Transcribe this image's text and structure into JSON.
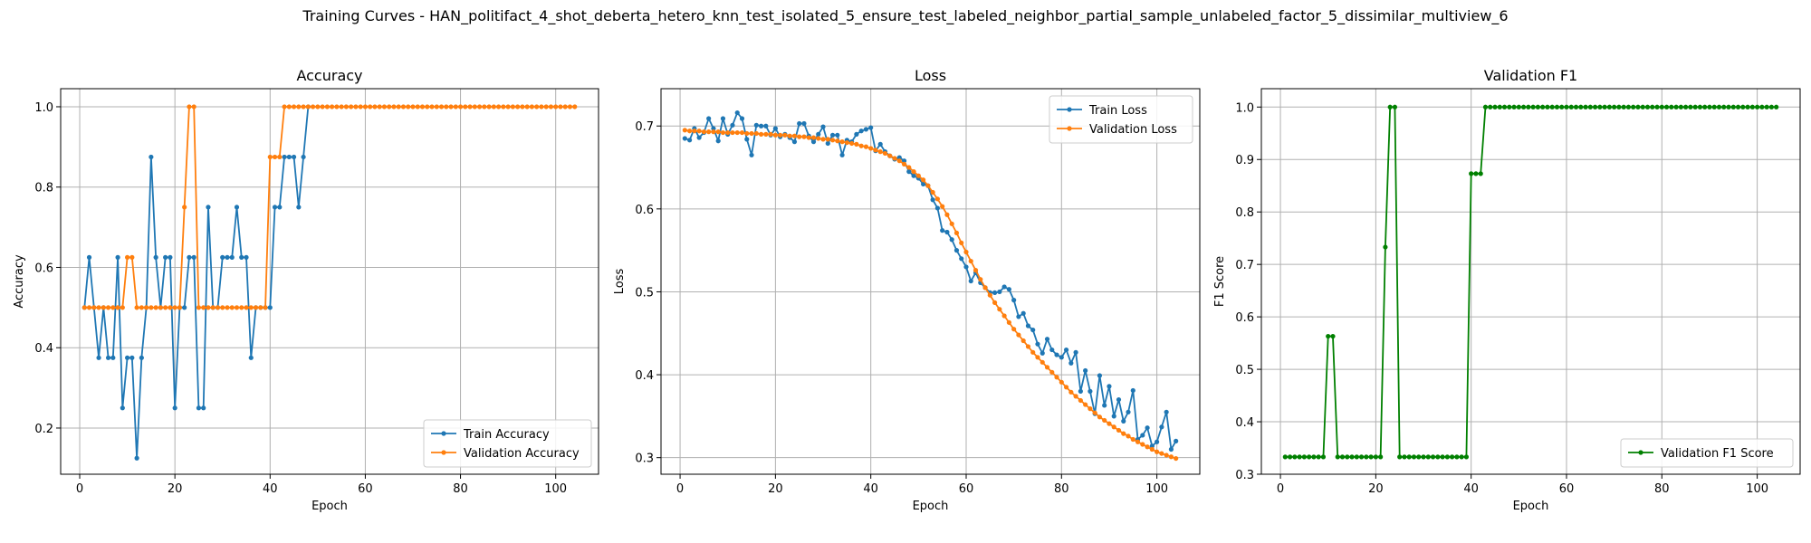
{
  "figure": {
    "suptitle": "Training Curves - HAN_politifact_4_shot_deberta_hetero_knn_test_isolated_5_ensure_test_labeled_neighbor_partial_sample_unlabeled_factor_5_dissimilar_multiview_6"
  },
  "chart_data": [
    {
      "type": "line",
      "title": "Accuracy",
      "xlabel": "Epoch",
      "ylabel": "Accuracy",
      "xlim": [
        -4,
        109
      ],
      "ylim": [
        0.085,
        1.045
      ],
      "xticks": [
        0,
        20,
        40,
        60,
        80,
        100
      ],
      "yticks": [
        0.2,
        0.4,
        0.6,
        0.8,
        1.0
      ],
      "ytick_labels": [
        "0.2",
        "0.4",
        "0.6",
        "0.8",
        "1.0"
      ],
      "grid": true,
      "legend_position": "lower-right",
      "series": [
        {
          "name": "Train Accuracy",
          "color": "#1f77b4",
          "x": [
            1,
            2,
            3,
            4,
            5,
            6,
            7,
            8,
            9,
            10,
            11,
            12,
            13,
            14,
            15,
            16,
            17,
            18,
            19,
            20,
            21,
            22,
            23,
            24,
            25,
            26,
            27,
            28,
            29,
            30,
            31,
            32,
            33,
            34,
            35,
            36,
            37,
            38,
            39,
            40,
            41,
            42,
            43,
            44,
            45,
            46,
            47,
            48
          ],
          "y": [
            0.5,
            0.625,
            0.5,
            0.375,
            0.5,
            0.375,
            0.375,
            0.625,
            0.25,
            0.375,
            0.375,
            0.125,
            0.375,
            0.5,
            0.875,
            0.625,
            0.5,
            0.625,
            0.625,
            0.25,
            0.5,
            0.5,
            0.625,
            0.625,
            0.25,
            0.25,
            0.75,
            0.5,
            0.5,
            0.625,
            0.625,
            0.625,
            0.75,
            0.625,
            0.625,
            0.375,
            0.5,
            0.5,
            0.5,
            0.5,
            0.75,
            0.75,
            0.875,
            0.875,
            0.875,
            0.75,
            0.875,
            1.0
          ]
        },
        {
          "name": "Validation Accuracy",
          "color": "#ff7f0e",
          "x_start": 1,
          "y": [
            0.5,
            0.5,
            0.5,
            0.5,
            0.5,
            0.5,
            0.5,
            0.5,
            0.5,
            0.625,
            0.625,
            0.5,
            0.5,
            0.5,
            0.5,
            0.5,
            0.5,
            0.5,
            0.5,
            0.5,
            0.5,
            0.75,
            1.0,
            1.0,
            0.5,
            0.5,
            0.5,
            0.5,
            0.5,
            0.5,
            0.5,
            0.5,
            0.5,
            0.5,
            0.5,
            0.5,
            0.5,
            0.5,
            0.5,
            0.875,
            0.875,
            0.875,
            1.0,
            1.0,
            1.0,
            1.0,
            1.0,
            1.0,
            1.0,
            1.0,
            1.0,
            1.0,
            1.0,
            1.0,
            1.0,
            1.0,
            1.0,
            1.0,
            1.0,
            1.0,
            1.0,
            1.0,
            1.0,
            1.0,
            1.0,
            1.0,
            1.0,
            1.0,
            1.0,
            1.0,
            1.0,
            1.0,
            1.0,
            1.0,
            1.0,
            1.0,
            1.0,
            1.0,
            1.0,
            1.0,
            1.0,
            1.0,
            1.0,
            1.0,
            1.0,
            1.0,
            1.0,
            1.0,
            1.0,
            1.0,
            1.0,
            1.0,
            1.0,
            1.0,
            1.0,
            1.0,
            1.0,
            1.0,
            1.0,
            1.0,
            1.0,
            1.0,
            1.0,
            1.0
          ]
        }
      ]
    },
    {
      "type": "line",
      "title": "Loss",
      "xlabel": "Epoch",
      "ylabel": "Loss",
      "xlim": [
        -4,
        109
      ],
      "ylim": [
        0.28,
        0.745
      ],
      "xticks": [
        0,
        20,
        40,
        60,
        80,
        100
      ],
      "yticks": [
        0.3,
        0.4,
        0.5,
        0.6,
        0.7
      ],
      "ytick_labels": [
        "0.3",
        "0.4",
        "0.5",
        "0.6",
        "0.7"
      ],
      "grid": true,
      "legend_position": "upper-right",
      "series": [
        {
          "name": "Train Loss",
          "color": "#1f77b4",
          "x_start": 1,
          "y": [
            0.685,
            0.683,
            0.697,
            0.686,
            0.692,
            0.709,
            0.697,
            0.682,
            0.709,
            0.69,
            0.701,
            0.716,
            0.709,
            0.684,
            0.665,
            0.701,
            0.7,
            0.7,
            0.689,
            0.697,
            0.687,
            0.69,
            0.686,
            0.681,
            0.703,
            0.703,
            0.688,
            0.681,
            0.69,
            0.699,
            0.679,
            0.689,
            0.689,
            0.665,
            0.683,
            0.681,
            0.69,
            0.694,
            0.696,
            0.698,
            0.67,
            0.678,
            0.669,
            0.664,
            0.66,
            0.662,
            0.658,
            0.645,
            0.64,
            0.637,
            0.63,
            0.628,
            0.611,
            0.601,
            0.574,
            0.572,
            0.563,
            0.55,
            0.54,
            0.53,
            0.513,
            0.523,
            0.511,
            0.505,
            0.499,
            0.499,
            0.5,
            0.506,
            0.503,
            0.49,
            0.47,
            0.474,
            0.459,
            0.454,
            0.437,
            0.426,
            0.443,
            0.43,
            0.424,
            0.421,
            0.43,
            0.414,
            0.427,
            0.38,
            0.405,
            0.38,
            0.353,
            0.399,
            0.363,
            0.386,
            0.35,
            0.37,
            0.344,
            0.355,
            0.381,
            0.322,
            0.327,
            0.336,
            0.314,
            0.319,
            0.337,
            0.355,
            0.31,
            0.32
          ]
        },
        {
          "name": "Validation Loss",
          "color": "#ff7f0e",
          "x_start": 1,
          "y": [
            0.695,
            0.694,
            0.694,
            0.694,
            0.693,
            0.693,
            0.693,
            0.693,
            0.692,
            0.692,
            0.692,
            0.692,
            0.692,
            0.691,
            0.691,
            0.691,
            0.69,
            0.69,
            0.69,
            0.689,
            0.689,
            0.689,
            0.688,
            0.688,
            0.687,
            0.687,
            0.686,
            0.686,
            0.685,
            0.684,
            0.684,
            0.683,
            0.682,
            0.681,
            0.68,
            0.679,
            0.678,
            0.676,
            0.675,
            0.673,
            0.671,
            0.669,
            0.667,
            0.664,
            0.661,
            0.658,
            0.654,
            0.65,
            0.645,
            0.64,
            0.635,
            0.628,
            0.62,
            0.612,
            0.603,
            0.593,
            0.582,
            0.571,
            0.559,
            0.548,
            0.537,
            0.526,
            0.515,
            0.505,
            0.496,
            0.487,
            0.479,
            0.471,
            0.463,
            0.455,
            0.448,
            0.441,
            0.434,
            0.427,
            0.421,
            0.415,
            0.409,
            0.403,
            0.397,
            0.391,
            0.385,
            0.379,
            0.374,
            0.369,
            0.364,
            0.359,
            0.354,
            0.349,
            0.345,
            0.341,
            0.337,
            0.333,
            0.329,
            0.326,
            0.322,
            0.319,
            0.316,
            0.313,
            0.31,
            0.307,
            0.305,
            0.303,
            0.301,
            0.299
          ]
        }
      ]
    },
    {
      "type": "line",
      "title": "Validation F1",
      "xlabel": "Epoch",
      "ylabel": "F1 Score",
      "xlim": [
        -4,
        109
      ],
      "ylim": [
        0.3,
        1.035
      ],
      "xticks": [
        0,
        20,
        40,
        60,
        80,
        100
      ],
      "yticks": [
        0.3,
        0.4,
        0.5,
        0.6,
        0.7,
        0.8,
        0.9,
        1.0
      ],
      "ytick_labels": [
        "0.3",
        "0.4",
        "0.5",
        "0.6",
        "0.7",
        "0.8",
        "0.9",
        "1.0"
      ],
      "grid": true,
      "legend_position": "lower-right",
      "series": [
        {
          "name": "Validation F1 Score",
          "color": "#008000",
          "x_start": 1,
          "y": [
            0.333,
            0.333,
            0.333,
            0.333,
            0.333,
            0.333,
            0.333,
            0.333,
            0.333,
            0.563,
            0.563,
            0.333,
            0.333,
            0.333,
            0.333,
            0.333,
            0.333,
            0.333,
            0.333,
            0.333,
            0.333,
            0.733,
            1.0,
            1.0,
            0.333,
            0.333,
            0.333,
            0.333,
            0.333,
            0.333,
            0.333,
            0.333,
            0.333,
            0.333,
            0.333,
            0.333,
            0.333,
            0.333,
            0.333,
            0.873,
            0.873,
            0.873,
            1.0,
            1.0,
            1.0,
            1.0,
            1.0,
            1.0,
            1.0,
            1.0,
            1.0,
            1.0,
            1.0,
            1.0,
            1.0,
            1.0,
            1.0,
            1.0,
            1.0,
            1.0,
            1.0,
            1.0,
            1.0,
            1.0,
            1.0,
            1.0,
            1.0,
            1.0,
            1.0,
            1.0,
            1.0,
            1.0,
            1.0,
            1.0,
            1.0,
            1.0,
            1.0,
            1.0,
            1.0,
            1.0,
            1.0,
            1.0,
            1.0,
            1.0,
            1.0,
            1.0,
            1.0,
            1.0,
            1.0,
            1.0,
            1.0,
            1.0,
            1.0,
            1.0,
            1.0,
            1.0,
            1.0,
            1.0,
            1.0,
            1.0,
            1.0,
            1.0,
            1.0,
            1.0
          ]
        }
      ]
    }
  ]
}
